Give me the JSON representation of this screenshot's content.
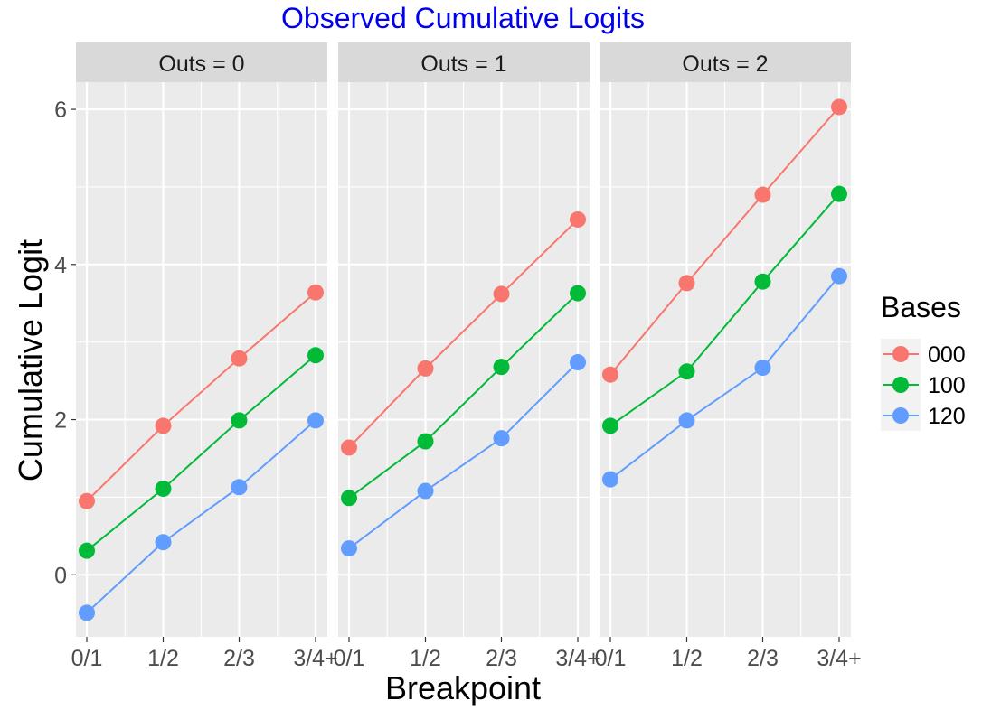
{
  "chart_data": {
    "type": "line",
    "title": "Observed Cumulative Logits",
    "xlabel": "Breakpoint",
    "ylabel": "Cumulative Logit",
    "categories": [
      "0/1",
      "1/2",
      "2/3",
      "3/4+"
    ],
    "y_ticks": [
      0,
      2,
      4,
      6
    ],
    "y_tick_labels": [
      "0",
      "2",
      "4",
      "6"
    ],
    "ylim": [
      -0.8,
      6.35
    ],
    "grid": true,
    "facet_variable": "Outs",
    "legend": {
      "title": "Bases",
      "placement": "right"
    },
    "series_colors": {
      "000": "#F8766D",
      "100": "#00BA38",
      "120": "#619CFF"
    },
    "panel_background": "#EBEBEB",
    "strip_background": "#D9D9D9",
    "title_color": "#0000EE",
    "panels": [
      {
        "strip_label": "Outs = 0",
        "series": [
          {
            "name": "000",
            "values": [
              0.95,
              1.92,
              2.79,
              3.64
            ]
          },
          {
            "name": "100",
            "values": [
              0.31,
              1.11,
              1.99,
              2.83
            ]
          },
          {
            "name": "120",
            "values": [
              -0.49,
              0.42,
              1.13,
              1.99
            ]
          }
        ]
      },
      {
        "strip_label": "Outs = 1",
        "series": [
          {
            "name": "000",
            "values": [
              1.64,
              2.66,
              3.62,
              4.58
            ]
          },
          {
            "name": "100",
            "values": [
              0.99,
              1.72,
              2.68,
              3.63
            ]
          },
          {
            "name": "120",
            "values": [
              0.34,
              1.08,
              1.76,
              2.74
            ]
          }
        ]
      },
      {
        "strip_label": "Outs = 2",
        "series": [
          {
            "name": "000",
            "values": [
              2.58,
              3.76,
              4.9,
              6.03
            ]
          },
          {
            "name": "100",
            "values": [
              1.92,
              2.62,
              3.78,
              4.91
            ]
          },
          {
            "name": "120",
            "values": [
              1.23,
              1.99,
              2.67,
              3.85
            ]
          }
        ]
      }
    ]
  }
}
